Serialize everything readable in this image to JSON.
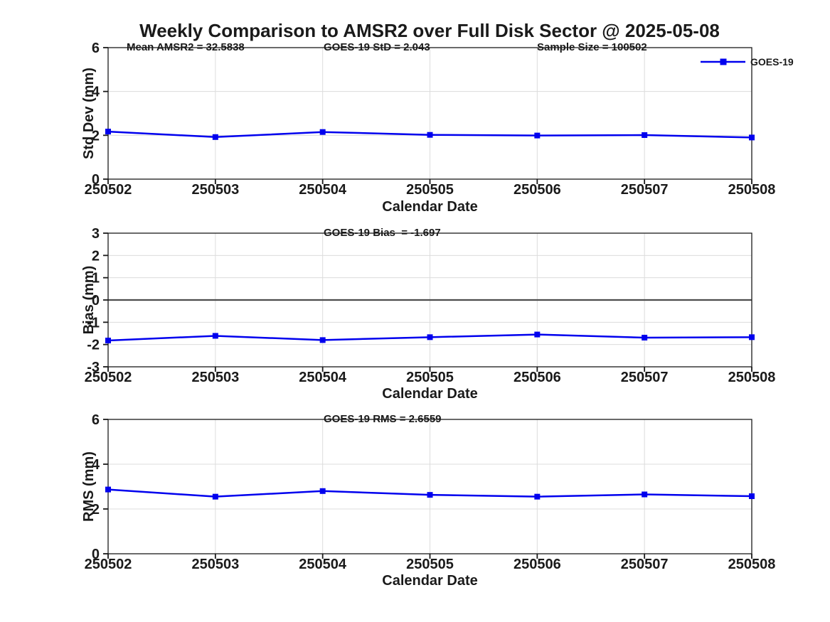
{
  "title": "Weekly Comparison to AMSR2 over Full Disk Sector @ 2025-05-08",
  "legend": {
    "label": "GOES-19"
  },
  "colors": {
    "line": "#0000ee",
    "grid": "#dcdcdc",
    "axis": "#1a1a1a",
    "zero_line": "#4d4d4d",
    "text": "#1a1a1a"
  },
  "categories": [
    "250502",
    "250503",
    "250504",
    "250505",
    "250506",
    "250507",
    "250508"
  ],
  "chart_data": [
    {
      "type": "line",
      "name": "std-dev",
      "title": "",
      "ylabel": "Std Dev (mm)",
      "xlabel": "Calendar Date",
      "ylim": [
        0,
        6
      ],
      "yticks": [
        0,
        2,
        4,
        6
      ],
      "grid": true,
      "legend_position": "top-right",
      "annotations": [
        {
          "text": "Mean AMSR2 = 32.5838"
        },
        {
          "text": "GOES-19 StD = 2.043"
        },
        {
          "text": "Sample Size = 100502"
        }
      ],
      "series": [
        {
          "name": "GOES-19",
          "values": [
            2.17,
            1.92,
            2.15,
            2.02,
            1.99,
            2.01,
            1.9
          ]
        }
      ]
    },
    {
      "type": "line",
      "name": "bias",
      "title": "",
      "ylabel": "Bias (mm)",
      "xlabel": "Calendar Date",
      "ylim": [
        -3,
        3
      ],
      "yticks": [
        -3,
        -2,
        -1,
        0,
        1,
        2,
        3
      ],
      "grid": true,
      "zero_line": true,
      "annotations": [
        {
          "text": "GOES-19 Bias  = -1.697"
        }
      ],
      "series": [
        {
          "name": "GOES-19",
          "values": [
            -1.82,
            -1.61,
            -1.8,
            -1.67,
            -1.55,
            -1.69,
            -1.67
          ]
        }
      ]
    },
    {
      "type": "line",
      "name": "rms",
      "title": "",
      "ylabel": "RMS (mm)",
      "xlabel": "Calendar Date",
      "ylim": [
        0,
        6
      ],
      "yticks": [
        0,
        2,
        4,
        6
      ],
      "grid": true,
      "annotations": [
        {
          "text": "GOES-19 RMS = 2.6559"
        }
      ],
      "series": [
        {
          "name": "GOES-19",
          "values": [
            2.87,
            2.55,
            2.8,
            2.63,
            2.55,
            2.65,
            2.57
          ]
        }
      ]
    }
  ]
}
